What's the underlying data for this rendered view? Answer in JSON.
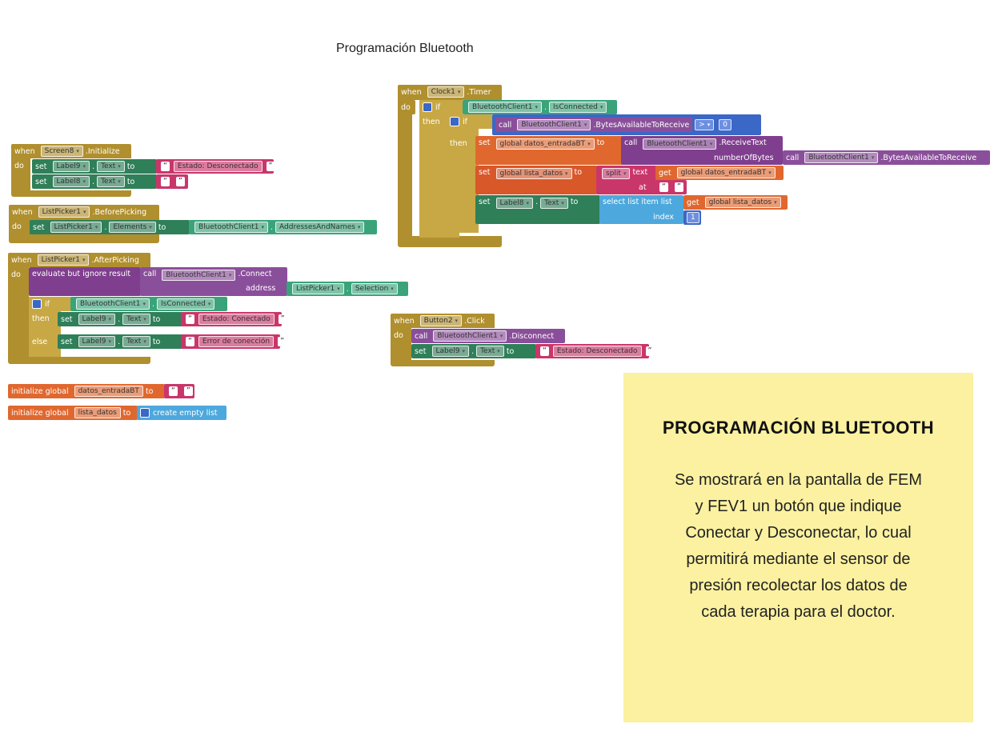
{
  "title": "Programación Bluetooth",
  "note": {
    "heading": "PROGRAMACIÓN BLUETOOTH",
    "body": "Se mostrará en la pantalla de FEM y FEV1 un botón que indique Conectar y Desconectar, lo cual permitirá mediante el sensor de presión recolectar los datos de cada terapia para el doctor."
  },
  "blocks": {
    "clock": {
      "when": "when",
      "component": "Clock1",
      "event": ".Timer",
      "do": "do",
      "if": "if",
      "then": "then",
      "bt": "BluetoothClient1",
      "isConnected": "IsConnected",
      "call": "call",
      "bytesAvail": ".BytesAvailableToReceive",
      "gt": ">",
      "zero": "0",
      "set": "set",
      "globalDatos": "global datos_entradaBT",
      "to": "to",
      "receiveText": ".ReceiveText",
      "numberOfBytes": "numberOfBytes",
      "globalLista": "global lista_datos",
      "split": "split",
      "text": "text",
      "get": "get",
      "getDatos": "global datos_entradaBT",
      "at": "at",
      "label8": "Label8",
      "textProp": "Text",
      "selectItem": "select list item list",
      "getLista": "global lista_datos",
      "index": "index",
      "one": "1"
    },
    "screen": {
      "when": "when",
      "component": "Screen8",
      "event": ".Initialize",
      "do": "do",
      "set": "set",
      "label9": "Label9",
      "textProp": "Text",
      "to": "to",
      "estado": "Estado: Desconectado",
      "label8": "Label8"
    },
    "before": {
      "when": "when",
      "component": "ListPicker1",
      "event": ".BeforePicking",
      "do": "do",
      "set": "set",
      "elements": "Elements",
      "to": "to",
      "bt": "BluetoothClient1",
      "addresses": "AddressesAndNames"
    },
    "after": {
      "when": "when",
      "component": "ListPicker1",
      "event": ".AfterPicking",
      "do": "do",
      "evaluate": "evaluate but ignore result",
      "call": "call",
      "bt": "BluetoothClient1",
      "connect": ".Connect",
      "address": "address",
      "selection": "Selection",
      "if": "if",
      "isConnected": "IsConnected",
      "then": "then",
      "else": "else",
      "set": "set",
      "label9": "Label9",
      "textProp": "Text",
      "to": "to",
      "conectado": "Estado: Conectado",
      "error": "Error de conección"
    },
    "button": {
      "when": "when",
      "component": "Button2",
      "event": ".Click",
      "do": "do",
      "call": "call",
      "bt": "BluetoothClient1",
      "disconnect": ".Disconnect",
      "set": "set",
      "label9": "Label9",
      "textProp": "Text",
      "to": "to",
      "estado": "Estado: Desconectado"
    },
    "globals": {
      "init": "initialize global",
      "datos": "datos_entradaBT",
      "to": "to",
      "lista": "lista_datos",
      "createEmpty": "create empty list"
    }
  },
  "colors": {
    "event": "#b08f2e",
    "set": "#2f7f59",
    "component": "#3aa37a",
    "call": "#8a4f9a",
    "text": "#c9366a",
    "variable": "#e0682f",
    "control": "#3b67c7",
    "list": "#4da8dd",
    "note": "#fbf1a0"
  }
}
